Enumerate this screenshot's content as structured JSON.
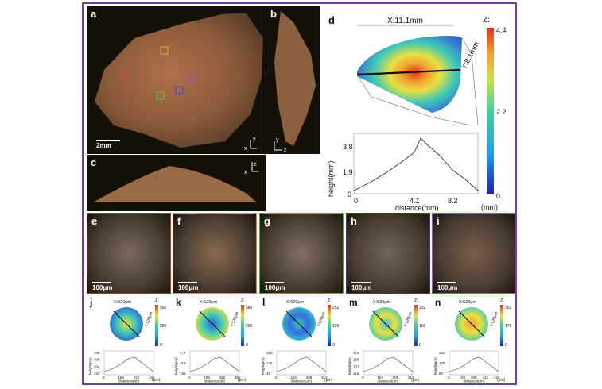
{
  "panels": {
    "a": {
      "label": "a",
      "scale": "2mm",
      "axis_x": "x",
      "axis_y": "y"
    },
    "b": {
      "label": "b",
      "axis_y": "y",
      "axis_z": "z"
    },
    "c": {
      "label": "c",
      "axis_z": "z",
      "axis_x": "x"
    },
    "d": {
      "label": "d",
      "x_dim": "X:11.1mm",
      "y_dim": "Y:8.1mm",
      "colorbar_title": "Z:",
      "colorbar_ticks": [
        "4.4",
        "2.2",
        "0"
      ],
      "colorbar_unit": "(mm)",
      "profile": {
        "ylabel": "height(mm)",
        "xlabel": "distance(mm)",
        "yticks": [
          "3.8",
          "1.9",
          "0"
        ],
        "xticks": [
          "0",
          "4.1",
          "8.2"
        ]
      }
    },
    "micro": [
      {
        "label": "e",
        "scale": "100μm"
      },
      {
        "label": "f",
        "scale": "100μm"
      },
      {
        "label": "g",
        "scale": "100μm"
      },
      {
        "label": "h",
        "scale": "100μm"
      },
      {
        "label": "i",
        "scale": "100μm"
      }
    ],
    "maps": [
      {
        "label": "j",
        "x_dim": "X:520μm",
        "y_dim": "Y:520μm",
        "z": "Z:",
        "cb": [
          "560",
          "280",
          "0"
        ],
        "yticks": [
          "408",
          "306",
          "204",
          "102"
        ],
        "xticks": [
          "0",
          "156",
          "312",
          "468"
        ],
        "ylabel": "height(μm)",
        "xlabel": "distance(μm)",
        "unit": "(μm)"
      },
      {
        "label": "k",
        "x_dim": "X:520μm",
        "y_dim": "Y:520μm",
        "z": "Z:",
        "cb": [
          "580",
          "290",
          "0"
        ],
        "yticks": [
          "477",
          "318",
          "159"
        ],
        "xticks": [
          "0",
          "156",
          "312",
          "468"
        ],
        "ylabel": "height(μm)",
        "xlabel": "distance(μm)",
        "unit": "(μm)"
      },
      {
        "label": "l",
        "x_dim": "X:520μm",
        "y_dim": "Y:520μm",
        "z": "Z:",
        "cb": [
          "252",
          "126",
          "0"
        ],
        "yticks": [
          "210",
          "126",
          "42"
        ],
        "xticks": [
          "0",
          "104",
          "208",
          "312"
        ],
        "ylabel": "height(μm)",
        "xlabel": "distance(μm)",
        "unit": "(μm)"
      },
      {
        "label": "m",
        "x_dim": "X:520μm",
        "y_dim": "Y:520μm",
        "z": "Z:",
        "cb": [
          "232",
          "116",
          "0"
        ],
        "yticks": [
          "179",
          "158",
          "137",
          "116"
        ],
        "xticks": [
          "0",
          "104",
          "208",
          "312"
        ],
        "ylabel": "height(μm)",
        "xlabel": "distance(μm)",
        "unit": "(μm)"
      },
      {
        "label": "n",
        "x_dim": "X:520μm",
        "y_dim": "Y:520μm",
        "z": "Z:",
        "cb": [
          "352",
          "176",
          "0"
        ],
        "yticks": [
          "300",
          "175",
          "50"
        ],
        "xticks": [
          "0",
          "104",
          "208",
          "312",
          "416"
        ],
        "ylabel": "height(μm)",
        "xlabel": "distance(μm)",
        "unit": "(μm)"
      }
    ]
  },
  "colors": {
    "frame": "#6b3fa0",
    "roi": [
      "#d8a030",
      "#e04040",
      "#60c040",
      "#5040e0",
      "#c040c0"
    ],
    "micro_borders": [
      "#c03030",
      "#d89030",
      "#40b040",
      "#3030c0",
      "#c040c0"
    ]
  }
}
